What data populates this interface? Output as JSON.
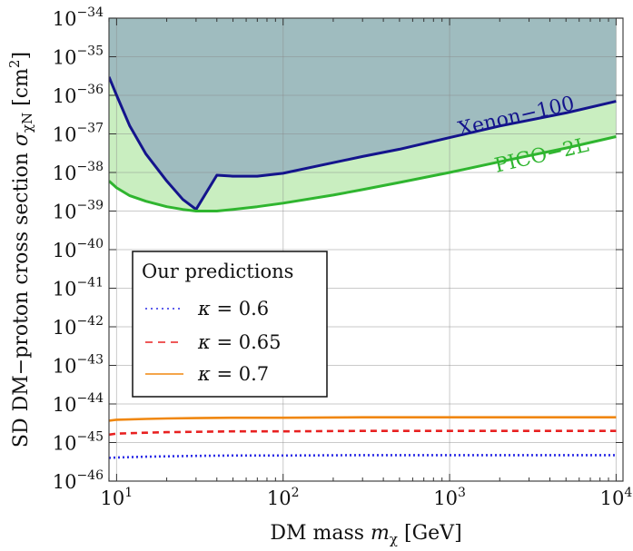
{
  "chart_data": {
    "type": "line",
    "xlabel": "DM mass m_χ [GeV]",
    "xlabel_parts": {
      "text": "DM mass ",
      "sym": "m",
      "sub": "χ",
      "unit": " [GeV]"
    },
    "ylabel": "SD DM−proton cross section σ_χN [cm²]",
    "ylabel_parts": {
      "text": "SD DM−proton cross section ",
      "sym": "σ",
      "sub": "χN",
      "unit": " [cm",
      "sup": "2",
      "close": "]"
    },
    "x_scale": "log",
    "y_scale": "log",
    "xlim": [
      9,
      11000
    ],
    "ylim": [
      1e-46,
      1e-34
    ],
    "grid": true,
    "x_ticks": [
      {
        "value": 10,
        "base": "10",
        "exp": "1"
      },
      {
        "value": 100,
        "base": "10",
        "exp": "2"
      },
      {
        "value": 1000,
        "base": "10",
        "exp": "3"
      },
      {
        "value": 10000,
        "base": "10",
        "exp": "4"
      }
    ],
    "y_ticks": [
      {
        "value": -34,
        "base": "10",
        "exp": "−34"
      },
      {
        "value": -35,
        "base": "10",
        "exp": "−35"
      },
      {
        "value": -36,
        "base": "10",
        "exp": "−36"
      },
      {
        "value": -37,
        "base": "10",
        "exp": "−37"
      },
      {
        "value": -38,
        "base": "10",
        "exp": "−38"
      },
      {
        "value": -39,
        "base": "10",
        "exp": "−39"
      },
      {
        "value": -40,
        "base": "10",
        "exp": "−40"
      },
      {
        "value": -41,
        "base": "10",
        "exp": "−41"
      },
      {
        "value": -42,
        "base": "10",
        "exp": "−42"
      },
      {
        "value": -43,
        "base": "10",
        "exp": "−43"
      },
      {
        "value": -44,
        "base": "10",
        "exp": "−44"
      },
      {
        "value": -45,
        "base": "10",
        "exp": "−45"
      },
      {
        "value": -46,
        "base": "10",
        "exp": "−46"
      }
    ],
    "exclusion_curves": [
      {
        "name": "Xenon−100",
        "line_color": "#14148c",
        "fill_color": "#9fbcbf",
        "label_color": "#14148c",
        "x": [
          9,
          10,
          12,
          15,
          20,
          25,
          30,
          40,
          50,
          70,
          100,
          200,
          300,
          500,
          1000,
          2000,
          5000,
          10000
        ],
        "y": [
          3e-36,
          1e-36,
          1.6e-37,
          3e-38,
          6e-39,
          2e-39,
          1.1e-39,
          8.5e-39,
          8e-39,
          8e-39,
          9.5e-39,
          1.8e-38,
          2.6e-38,
          4e-38,
          8e-38,
          1.6e-37,
          3.5e-37,
          7e-37
        ]
      },
      {
        "name": "PICO−2L",
        "line_color": "#2fb52f",
        "fill_color": "#c9eec0",
        "label_color": "#2fb52f",
        "x": [
          9,
          10,
          12,
          15,
          20,
          25,
          30,
          40,
          50,
          70,
          100,
          200,
          300,
          500,
          1000,
          2000,
          5000,
          10000
        ],
        "y": [
          6e-39,
          4e-39,
          2.5e-39,
          1.8e-39,
          1.3e-39,
          1.1e-39,
          1e-39,
          1e-39,
          1.1e-39,
          1.3e-39,
          1.6e-39,
          2.6e-39,
          3.6e-39,
          5.5e-39,
          1e-38,
          1.9e-38,
          4.3e-38,
          8.5e-38
        ]
      }
    ],
    "series": [
      {
        "name": "κ = 0.6",
        "color": "#2a2ae6",
        "style": "dotted",
        "x": [
          9,
          10,
          15,
          20,
          30,
          50,
          100,
          300,
          1000,
          3000,
          10000
        ],
        "y": [
          4e-46,
          4.1e-46,
          4.3e-46,
          4.4e-46,
          4.5e-46,
          4.6e-46,
          4.6e-46,
          4.7e-46,
          4.7e-46,
          4.7e-46,
          4.7e-46
        ]
      },
      {
        "name": "κ = 0.65",
        "color": "#e82020",
        "style": "dashed",
        "x": [
          9,
          10,
          15,
          20,
          30,
          50,
          100,
          300,
          1000,
          3000,
          10000
        ],
        "y": [
          1.6e-45,
          1.7e-45,
          1.8e-45,
          1.85e-45,
          1.9e-45,
          1.95e-45,
          1.95e-45,
          2e-45,
          2e-45,
          2e-45,
          2e-45
        ]
      },
      {
        "name": "κ = 0.7",
        "color": "#f0870f",
        "style": "solid",
        "x": [
          9,
          10,
          15,
          20,
          30,
          50,
          100,
          300,
          1000,
          3000,
          10000
        ],
        "y": [
          3.7e-45,
          3.9e-45,
          4.1e-45,
          4.2e-45,
          4.3e-45,
          4.4e-45,
          4.4e-45,
          4.5e-45,
          4.5e-45,
          4.5e-45,
          4.5e-45
        ]
      }
    ],
    "legend": {
      "title": "Our predictions",
      "placement": "lower-left",
      "entries": [
        {
          "symbol": "κ",
          "text": " = 0.6",
          "color": "#2a2ae6",
          "style": "dotted"
        },
        {
          "symbol": "κ",
          "text": " = 0.65",
          "color": "#e82020",
          "style": "dashed"
        },
        {
          "symbol": "κ",
          "text": " = 0.7",
          "color": "#f0870f",
          "style": "solid"
        }
      ]
    }
  }
}
